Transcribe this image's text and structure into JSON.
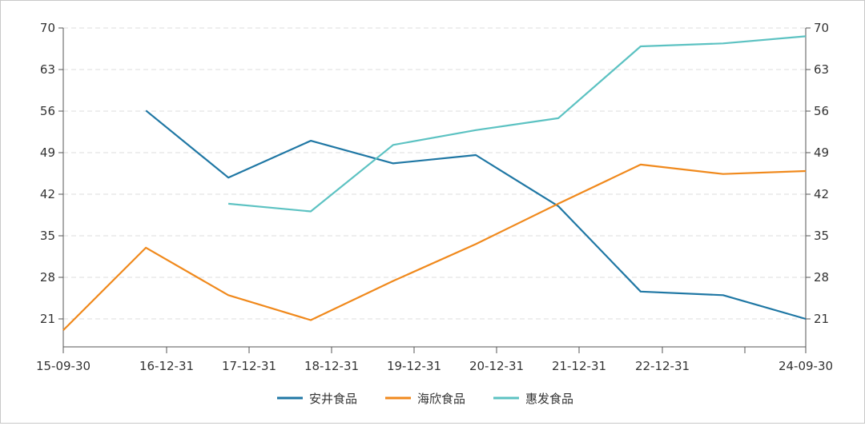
{
  "chart_data": {
    "type": "line",
    "x_ticks": [
      "15-09-30",
      "16-12-31",
      "17-12-31",
      "18-12-31",
      "19-12-31",
      "20-12-31",
      "21-12-31",
      "22-12-31",
      "",
      "24-09-30"
    ],
    "y_ticks": [
      "21",
      "28",
      "35",
      "42",
      "49",
      "56",
      "63",
      "70"
    ],
    "ylim": [
      21,
      70
    ],
    "grid": true,
    "legend_position": "bottom",
    "series": [
      {
        "name": "安井食品",
        "color": "#1f77a4",
        "points": [
          {
            "x": "16-09-30",
            "y": 56.1
          },
          {
            "x": "17-09-30",
            "y": 44.8
          },
          {
            "x": "18-09-30",
            "y": 51.0
          },
          {
            "x": "19-09-30",
            "y": 47.2
          },
          {
            "x": "20-09-30",
            "y": 48.6
          },
          {
            "x": "21-09-30",
            "y": 40.0
          },
          {
            "x": "22-09-30",
            "y": 25.6
          },
          {
            "x": "23-09-30",
            "y": 25.0
          },
          {
            "x": "24-09-30",
            "y": 21.0
          }
        ]
      },
      {
        "name": "海欣食品",
        "color": "#f0891c",
        "points": [
          {
            "x": "15-09-30",
            "y": 19.1
          },
          {
            "x": "16-09-30",
            "y": 33.0
          },
          {
            "x": "17-09-30",
            "y": 25.0
          },
          {
            "x": "18-09-30",
            "y": 20.8
          },
          {
            "x": "19-09-30",
            "y": 27.4
          },
          {
            "x": "20-09-30",
            "y": 33.6
          },
          {
            "x": "21-09-30",
            "y": 40.4
          },
          {
            "x": "22-09-30",
            "y": 47.0
          },
          {
            "x": "23-09-30",
            "y": 45.4
          },
          {
            "x": "24-09-30",
            "y": 45.9
          }
        ]
      },
      {
        "name": "惠发食品",
        "color": "#5cc2c2",
        "points": [
          {
            "x": "17-09-30",
            "y": 40.4
          },
          {
            "x": "18-09-30",
            "y": 39.1
          },
          {
            "x": "19-09-30",
            "y": 50.3
          },
          {
            "x": "20-09-30",
            "y": 52.8
          },
          {
            "x": "21-09-30",
            "y": 54.8
          },
          {
            "x": "22-09-30",
            "y": 66.9
          },
          {
            "x": "23-09-30",
            "y": 67.4
          },
          {
            "x": "24-09-30",
            "y": 68.6
          }
        ]
      }
    ]
  }
}
